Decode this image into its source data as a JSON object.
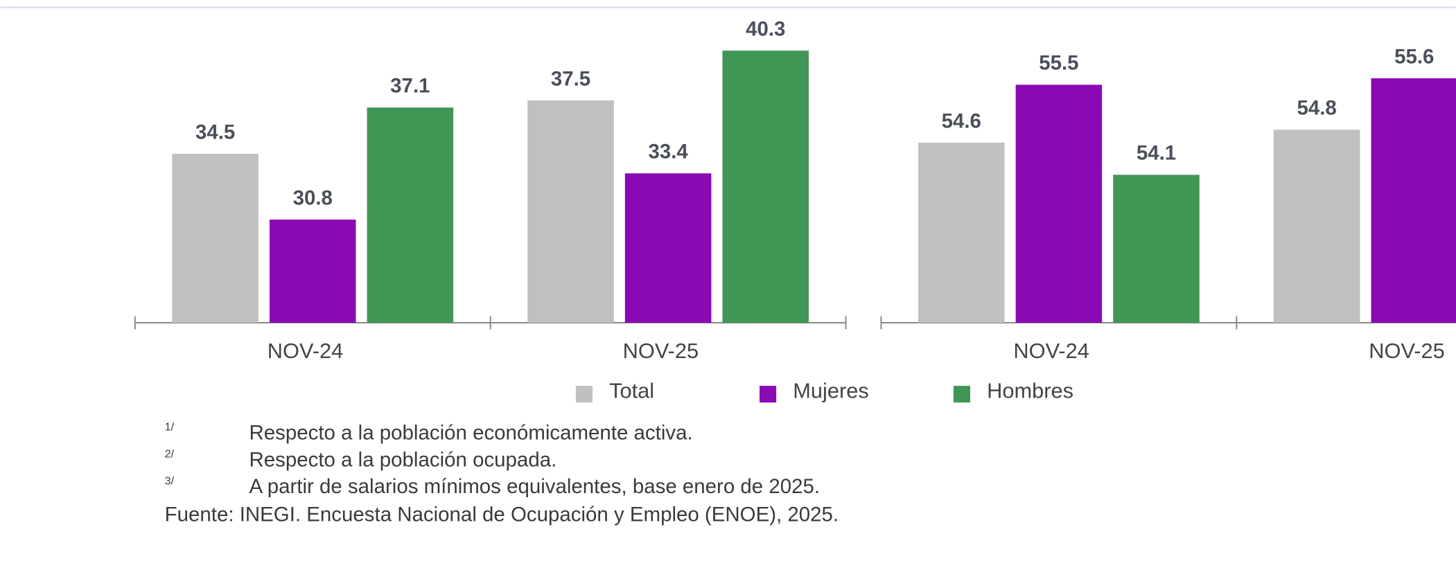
{
  "chart_data": [
    {
      "type": "bar",
      "categories": [
        "NOV-24",
        "NOV-25"
      ],
      "ylim": [
        25,
        42
      ],
      "series": [
        {
          "name": "Total",
          "color": "#c0c0c0",
          "values": [
            34.5,
            37.5
          ]
        },
        {
          "name": "Mujeres",
          "color": "#8a0ab3",
          "values": [
            30.8,
            33.4
          ]
        },
        {
          "name": "Hombres",
          "color": "#3f9655",
          "values": [
            37.1,
            40.3
          ]
        }
      ]
    },
    {
      "type": "bar",
      "categories": [
        "NOV-24",
        "NOV-25"
      ],
      "ylim": [
        51.8,
        56.5
      ],
      "series": [
        {
          "name": "Total",
          "color": "#c0c0c0",
          "values": [
            54.6,
            54.8
          ]
        },
        {
          "name": "Mujeres",
          "color": "#8a0ab3",
          "values": [
            55.5,
            55.6
          ]
        },
        {
          "name": "Hombres",
          "color": "#3f9655",
          "values": [
            54.1,
            null
          ]
        }
      ]
    }
  ],
  "notes": [
    {
      "mark": "1/",
      "text": "Respecto a la población económicamente activa."
    },
    {
      "mark": "2/",
      "text": "Respecto a la población ocupada."
    },
    {
      "mark": "3/",
      "text": "A partir de salarios mínimos equivalentes, base enero de 2025."
    }
  ],
  "source": "Fuente: INEGI. Encuesta Nacional de Ocupación y Empleo (ENOE), 2025."
}
